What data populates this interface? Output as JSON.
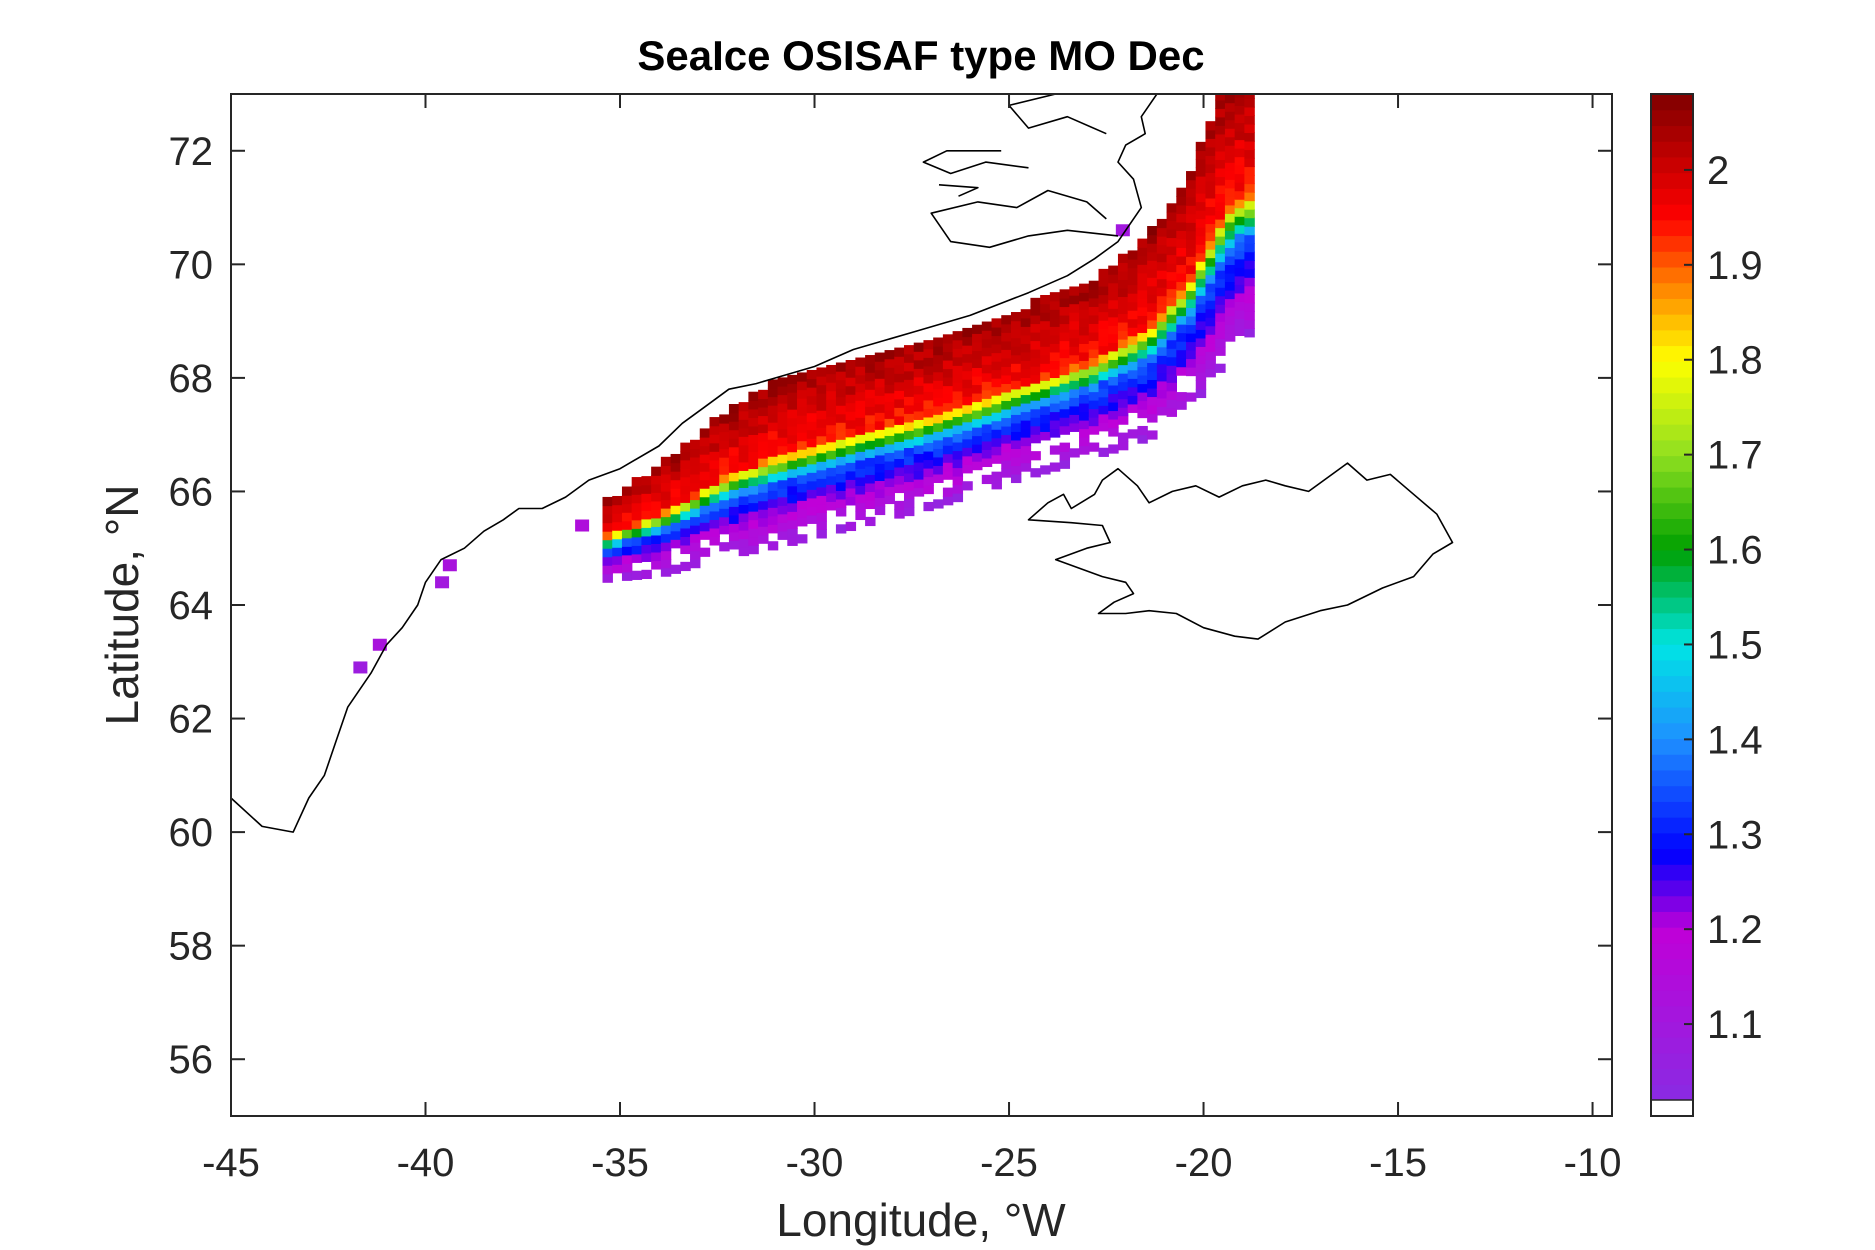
{
  "figure": {
    "title": "SeaIce OSISAF type MO Dec",
    "xlabel": "Longitude, °W",
    "ylabel": "Latitude, °N"
  },
  "map": {
    "xlim": [
      -45,
      -9.5
    ],
    "ylim": [
      55,
      73
    ],
    "x_ticks": [
      -45,
      -40,
      -35,
      -30,
      -25,
      -20,
      -15,
      -10
    ],
    "y_ticks": [
      56,
      58,
      60,
      62,
      64,
      66,
      68,
      70,
      72
    ],
    "colorbar": {
      "min": 1.02,
      "max": 2.08,
      "ticks": [
        1.1,
        1.2,
        1.3,
        1.4,
        1.5,
        1.6,
        1.7,
        1.8,
        1.9,
        2
      ],
      "stops": [
        {
          "v": 1.02,
          "color": "#8a2be2"
        },
        {
          "v": 1.2,
          "color": "#c000d8"
        },
        {
          "v": 1.28,
          "color": "#0000ff"
        },
        {
          "v": 1.4,
          "color": "#1e90ff"
        },
        {
          "v": 1.5,
          "color": "#00e5e5"
        },
        {
          "v": 1.6,
          "color": "#00a000"
        },
        {
          "v": 1.7,
          "color": "#90e020"
        },
        {
          "v": 1.8,
          "color": "#ffff00"
        },
        {
          "v": 1.88,
          "color": "#ff8000"
        },
        {
          "v": 1.95,
          "color": "#ff0000"
        },
        {
          "v": 2.08,
          "color": "#800000"
        }
      ]
    },
    "ice_band": {
      "centerline": [
        [
          -35.5,
          65.5
        ],
        [
          -34,
          66.0
        ],
        [
          -32.5,
          66.7
        ],
        [
          -31,
          67.2
        ],
        [
          -29,
          67.6
        ],
        [
          -27,
          67.9
        ],
        [
          -25,
          68.4
        ],
        [
          -23,
          68.9
        ],
        [
          -21.5,
          69.6
        ],
        [
          -20.5,
          70.5
        ],
        [
          -19.8,
          71.5
        ],
        [
          -19.2,
          72.5
        ],
        [
          -18.8,
          73.0
        ]
      ],
      "width": [
        0.5,
        0.8,
        1.1,
        1.3,
        1.35,
        1.3,
        1.3,
        1.35,
        1.6,
        1.9,
        2.2,
        2.5,
        2.7
      ],
      "outer_offset": [
        0.6,
        0.7,
        0.8,
        0.9,
        0.9,
        0.9,
        0.95,
        1.0,
        1.1,
        1.2,
        1.3,
        1.4,
        1.5
      ],
      "patches": [
        {
          "lon": -39.4,
          "lat": 64.7,
          "value": 1.12
        },
        {
          "lon": -39.6,
          "lat": 64.4,
          "value": 1.1
        },
        {
          "lon": -36,
          "lat": 65.4,
          "value": 1.14
        },
        {
          "lon": -41.2,
          "lat": 63.3,
          "value": 1.12
        },
        {
          "lon": -41.7,
          "lat": 62.9,
          "value": 1.08
        },
        {
          "lon": -22.1,
          "lat": 70.6,
          "value": 1.1
        }
      ]
    },
    "coastlines": {
      "greenland": [
        [
          -45,
          60.6
        ],
        [
          -44.2,
          60.1
        ],
        [
          -43.4,
          60.0
        ],
        [
          -43.0,
          60.6
        ],
        [
          -42.6,
          61.0
        ],
        [
          -42.3,
          61.6
        ],
        [
          -42.0,
          62.2
        ],
        [
          -41.4,
          62.8
        ],
        [
          -41.0,
          63.3
        ],
        [
          -40.6,
          63.6
        ],
        [
          -40.2,
          64.0
        ],
        [
          -40.0,
          64.4
        ],
        [
          -39.6,
          64.8
        ],
        [
          -39.0,
          65.0
        ],
        [
          -38.5,
          65.3
        ],
        [
          -38.0,
          65.5
        ],
        [
          -37.6,
          65.7
        ],
        [
          -37.0,
          65.7
        ],
        [
          -36.4,
          65.9
        ],
        [
          -35.8,
          66.2
        ],
        [
          -35.0,
          66.4
        ],
        [
          -34.0,
          66.8
        ],
        [
          -33.4,
          67.2
        ],
        [
          -32.8,
          67.5
        ],
        [
          -32.2,
          67.8
        ],
        [
          -31.5,
          67.9
        ],
        [
          -31.0,
          68.0
        ],
        [
          -30.0,
          68.2
        ],
        [
          -29.0,
          68.5
        ],
        [
          -27.5,
          68.8
        ],
        [
          -26.0,
          69.1
        ],
        [
          -24.5,
          69.5
        ],
        [
          -23.5,
          69.8
        ],
        [
          -22.8,
          70.1
        ],
        [
          -22.2,
          70.4
        ],
        [
          -22.0,
          70.6
        ],
        [
          -21.6,
          71.0
        ],
        [
          -21.8,
          71.5
        ],
        [
          -22.2,
          71.8
        ],
        [
          -22.0,
          72.1
        ],
        [
          -21.5,
          72.3
        ],
        [
          -21.6,
          72.6
        ],
        [
          -21.2,
          73.0
        ]
      ],
      "greenland_fjords": [
        [
          [
            -22.2,
            70.5
          ],
          [
            -23.5,
            70.6
          ],
          [
            -24.5,
            70.5
          ],
          [
            -25.5,
            70.3
          ],
          [
            -26.5,
            70.4
          ],
          [
            -27.0,
            70.9
          ],
          [
            -25.8,
            71.1
          ],
          [
            -24.8,
            71.0
          ],
          [
            -24.0,
            71.3
          ],
          [
            -23.0,
            71.1
          ],
          [
            -22.5,
            70.8
          ]
        ],
        [
          [
            -24.5,
            71.7
          ],
          [
            -25.6,
            71.8
          ],
          [
            -26.5,
            71.6
          ],
          [
            -27.2,
            71.8
          ],
          [
            -26.6,
            72.0
          ],
          [
            -25.2,
            72.0
          ]
        ],
        [
          [
            -22.5,
            72.3
          ],
          [
            -23.5,
            72.6
          ],
          [
            -24.5,
            72.4
          ],
          [
            -25.0,
            72.8
          ],
          [
            -23.8,
            73.0
          ]
        ],
        [
          [
            -26.3,
            71.2
          ],
          [
            -25.8,
            71.35
          ],
          [
            -26.8,
            71.4
          ]
        ]
      ],
      "iceland": [
        [
          -24.5,
          65.5
        ],
        [
          -24.0,
          65.8
        ],
        [
          -23.6,
          65.95
        ],
        [
          -23.4,
          65.7
        ],
        [
          -22.8,
          65.95
        ],
        [
          -22.6,
          66.2
        ],
        [
          -22.2,
          66.4
        ],
        [
          -21.7,
          66.1
        ],
        [
          -21.4,
          65.8
        ],
        [
          -20.8,
          66.0
        ],
        [
          -20.2,
          66.1
        ],
        [
          -19.6,
          65.9
        ],
        [
          -19.0,
          66.1
        ],
        [
          -18.4,
          66.2
        ],
        [
          -17.9,
          66.1
        ],
        [
          -17.3,
          66.0
        ],
        [
          -16.9,
          66.2
        ],
        [
          -16.3,
          66.5
        ],
        [
          -15.8,
          66.2
        ],
        [
          -15.2,
          66.3
        ],
        [
          -14.6,
          65.95
        ],
        [
          -14.0,
          65.6
        ],
        [
          -13.6,
          65.1
        ],
        [
          -14.1,
          64.9
        ],
        [
          -14.6,
          64.5
        ],
        [
          -15.4,
          64.3
        ],
        [
          -16.3,
          64.0
        ],
        [
          -17.0,
          63.9
        ],
        [
          -17.9,
          63.7
        ],
        [
          -18.6,
          63.4
        ],
        [
          -19.2,
          63.45
        ],
        [
          -20.0,
          63.6
        ],
        [
          -20.7,
          63.85
        ],
        [
          -21.4,
          63.9
        ],
        [
          -22.0,
          63.85
        ],
        [
          -22.7,
          63.85
        ],
        [
          -22.3,
          64.05
        ],
        [
          -21.8,
          64.2
        ],
        [
          -22.0,
          64.4
        ],
        [
          -22.6,
          64.5
        ],
        [
          -23.8,
          64.8
        ],
        [
          -23.0,
          65.0
        ],
        [
          -22.4,
          65.1
        ],
        [
          -22.6,
          65.4
        ],
        [
          -23.4,
          65.45
        ],
        [
          -24.5,
          65.5
        ]
      ]
    }
  }
}
